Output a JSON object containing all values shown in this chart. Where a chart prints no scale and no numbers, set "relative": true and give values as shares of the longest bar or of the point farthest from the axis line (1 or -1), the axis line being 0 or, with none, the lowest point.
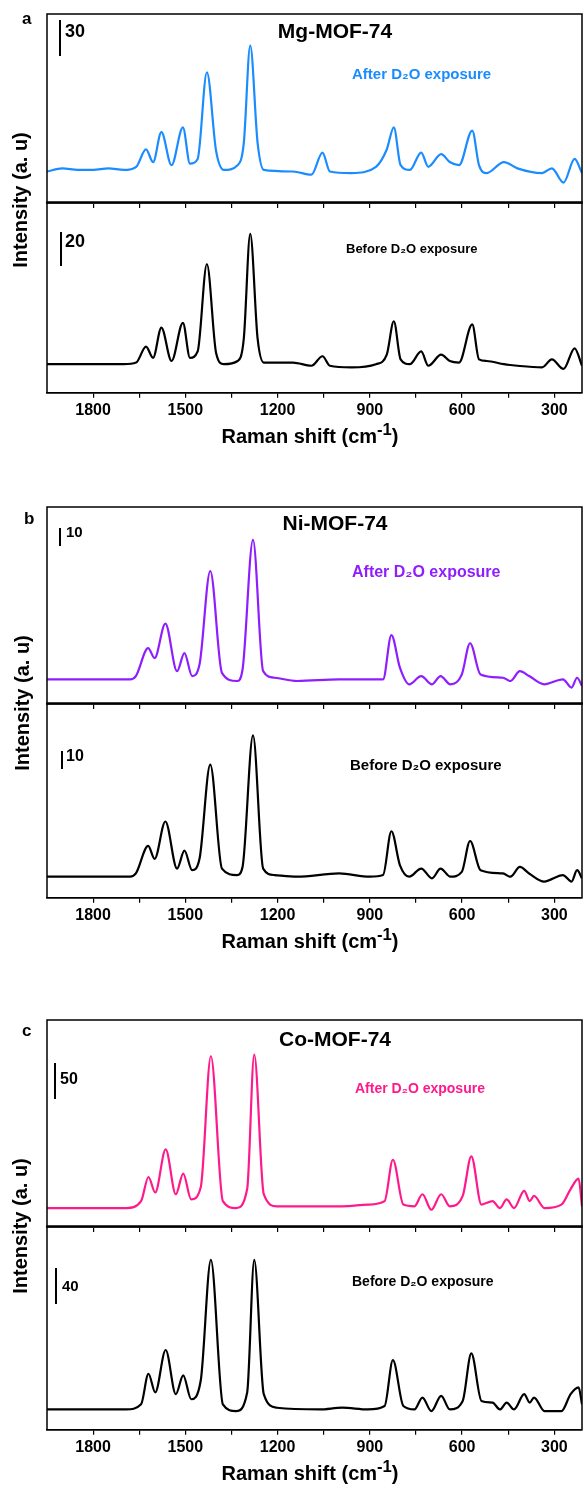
{
  "chart_data": [
    {
      "type": "line",
      "title": "Mg-MOF-74",
      "ylabel": "Intensity (a. u)",
      "relative": true,
      "tick_labels": false,
      "legend": false,
      "grid": false,
      "xlim": [
        1950,
        210
      ],
      "xticks": [
        1800,
        {
          "value": 1650,
          "label": null
        },
        1500,
        {
          "value": 1350,
          "label": null
        },
        1200,
        {
          "value": 1050,
          "label": null
        },
        900,
        {
          "value": 750,
          "label": null
        },
        600,
        {
          "value": 450,
          "label": null
        },
        300
      ],
      "annotations": [
        "a",
        "30"
      ],
      "series": [
        {
          "name": "After D₂O exposure",
          "color": "#1a8cff",
          "x": [
            1950,
            1900,
            1850,
            1800,
            1750,
            1700,
            1660,
            1628,
            1605,
            1578,
            1545,
            1508,
            1485,
            1460,
            1430,
            1400,
            1375,
            1330,
            1310,
            1289,
            1265,
            1245,
            1150,
            1090,
            1054,
            1030,
            960,
            880,
            845,
            822,
            800,
            770,
            733,
            710,
            668,
            640,
            610,
            567,
            545,
            520,
            464,
            420,
            340,
            308,
            270,
            234,
            210
          ],
          "values": [
            0.2,
            0.22,
            0.21,
            0.21,
            0.22,
            0.21,
            0.23,
            0.34,
            0.26,
            0.45,
            0.24,
            0.48,
            0.25,
            0.28,
            0.83,
            0.33,
            0.21,
            0.24,
            0.38,
            1,
            0.38,
            0.21,
            0.2,
            0.18,
            0.32,
            0.2,
            0.19,
            0.23,
            0.34,
            0.48,
            0.24,
            0.21,
            0.32,
            0.23,
            0.31,
            0.26,
            0.24,
            0.46,
            0.24,
            0.19,
            0.26,
            0.22,
            0.19,
            0.22,
            0.13,
            0.28,
            0.19
          ]
        }
      ]
    },
    {
      "type": "line",
      "xlabel": "Raman shift (cm$^{-1}$)",
      "relative": true,
      "tick_labels": "x",
      "legend": false,
      "grid": false,
      "xlim": [
        1950,
        210
      ],
      "xticks": [
        1800,
        {
          "value": 1650,
          "label": null
        },
        1500,
        {
          "value": 1350,
          "label": null
        },
        1200,
        {
          "value": 1050,
          "label": null
        },
        900,
        {
          "value": 750,
          "label": null
        },
        600,
        {
          "value": 450,
          "label": null
        },
        300
      ],
      "annotations": [
        "20"
      ],
      "series": [
        {
          "name": "Before D₂O exposure",
          "color": "#000000",
          "x": [
            1950,
            1900,
            1850,
            1800,
            1750,
            1700,
            1660,
            1628,
            1605,
            1578,
            1545,
            1508,
            1485,
            1460,
            1430,
            1400,
            1375,
            1330,
            1310,
            1289,
            1265,
            1245,
            1150,
            1090,
            1054,
            1030,
            960,
            880,
            845,
            822,
            800,
            770,
            733,
            710,
            668,
            640,
            610,
            567,
            545,
            520,
            464,
            420,
            340,
            308,
            270,
            234,
            210
          ],
          "values": [
            0.18,
            0.18,
            0.18,
            0.18,
            0.18,
            0.18,
            0.19,
            0.29,
            0.22,
            0.41,
            0.2,
            0.44,
            0.22,
            0.26,
            0.81,
            0.25,
            0.18,
            0.2,
            0.34,
            1,
            0.34,
            0.19,
            0.19,
            0.17,
            0.23,
            0.17,
            0.16,
            0.18,
            0.24,
            0.45,
            0.21,
            0.18,
            0.26,
            0.17,
            0.24,
            0.2,
            0.19,
            0.43,
            0.21,
            0.2,
            0.18,
            0.17,
            0.16,
            0.21,
            0.15,
            0.28,
            0.17
          ]
        }
      ]
    },
    {
      "type": "line",
      "title": "Ni-MOF-74",
      "ylabel": "Intensity (a. u)",
      "relative": true,
      "tick_labels": false,
      "legend": false,
      "grid": false,
      "xlim": [
        1950,
        210
      ],
      "xticks": [
        1800,
        {
          "value": 1650,
          "label": null
        },
        1500,
        {
          "value": 1350,
          "label": null
        },
        1200,
        {
          "value": 1050,
          "label": null
        },
        900,
        {
          "value": 750,
          "label": null
        },
        600,
        {
          "value": 450,
          "label": null
        },
        300
      ],
      "annotations": [
        "b",
        "10"
      ],
      "series": [
        {
          "name": "After D₂O exposure",
          "color": "#8f1eff",
          "x": [
            1950,
            1850,
            1750,
            1680,
            1661,
            1621,
            1600,
            1565,
            1527,
            1503,
            1478,
            1454,
            1419,
            1381,
            1332,
            1314,
            1280,
            1247,
            1210,
            1137,
            1000,
            900,
            857,
            830,
            802,
            772,
            733,
            698,
            670,
            638,
            601,
            574,
            540,
            467,
            443,
            412,
            382,
            333,
            272,
            244,
            226,
            210
          ],
          "values": [
            0.15,
            0.15,
            0.15,
            0.15,
            0.17,
            0.34,
            0.28,
            0.49,
            0.2,
            0.31,
            0.17,
            0.24,
            0.81,
            0.19,
            0.14,
            0.21,
            1,
            0.2,
            0.16,
            0.14,
            0.15,
            0.15,
            0.15,
            0.42,
            0.22,
            0.12,
            0.17,
            0.12,
            0.17,
            0.12,
            0.18,
            0.37,
            0.18,
            0.16,
            0.14,
            0.2,
            0.17,
            0.12,
            0.15,
            0.1,
            0.16,
            0.11
          ]
        }
      ]
    },
    {
      "type": "line",
      "xlabel": "Raman shift (cm$^{-1}$)",
      "relative": true,
      "tick_labels": "x",
      "legend": false,
      "grid": false,
      "xlim": [
        1950,
        210
      ],
      "xticks": [
        1800,
        {
          "value": 1650,
          "label": null
        },
        1500,
        {
          "value": 1350,
          "label": null
        },
        1200,
        {
          "value": 1050,
          "label": null
        },
        900,
        {
          "value": 750,
          "label": null
        },
        600,
        {
          "value": 450,
          "label": null
        },
        300
      ],
      "annotations": [
        "10"
      ],
      "series": [
        {
          "name": "Before D₂O exposure",
          "color": "#000000",
          "x": [
            1950,
            1850,
            1750,
            1680,
            1661,
            1621,
            1600,
            1565,
            1527,
            1503,
            1478,
            1454,
            1419,
            1381,
            1332,
            1314,
            1280,
            1247,
            1210,
            1137,
            1000,
            900,
            857,
            830,
            802,
            772,
            733,
            698,
            670,
            638,
            601,
            574,
            540,
            467,
            443,
            412,
            382,
            333,
            272,
            244,
            226,
            210
          ],
          "values": [
            0.13,
            0.13,
            0.13,
            0.13,
            0.15,
            0.32,
            0.24,
            0.47,
            0.18,
            0.29,
            0.17,
            0.24,
            0.82,
            0.18,
            0.14,
            0.19,
            1,
            0.18,
            0.14,
            0.13,
            0.15,
            0.13,
            0.14,
            0.41,
            0.2,
            0.13,
            0.18,
            0.12,
            0.18,
            0.13,
            0.16,
            0.35,
            0.17,
            0.15,
            0.13,
            0.19,
            0.15,
            0.1,
            0.14,
            0.1,
            0.17,
            0.12
          ]
        }
      ]
    },
    {
      "type": "line",
      "title": "Co-MOF-74",
      "ylabel": "Intensity (a. u)",
      "relative": true,
      "tick_labels": false,
      "legend": false,
      "grid": false,
      "xlim": [
        1950,
        210
      ],
      "xticks": [
        1800,
        {
          "value": 1650,
          "label": null
        },
        1500,
        {
          "value": 1350,
          "label": null
        },
        1200,
        {
          "value": 1050,
          "label": null
        },
        900,
        {
          "value": 750,
          "label": null
        },
        600,
        {
          "value": 450,
          "label": null
        },
        300
      ],
      "annotations": [
        "c",
        "50"
      ],
      "series": [
        {
          "name": "After D₂O exposure",
          "color": "#ff1a8c",
          "x": [
            1950,
            1850,
            1750,
            1692,
            1644,
            1620,
            1598,
            1564,
            1531,
            1507,
            1481,
            1450,
            1417,
            1378,
            1335,
            1299,
            1276,
            1245,
            1202,
            1063,
            990,
            906,
            852,
            825,
            791,
            755,
            729,
            700,
            668,
            640,
            598,
            570,
            537,
            501,
            477,
            455,
            431,
            398,
            380,
            366,
            332,
            277,
            247,
            221,
            210
          ],
          "values": [
            0.11,
            0.11,
            0.11,
            0.11,
            0.15,
            0.29,
            0.2,
            0.45,
            0.19,
            0.31,
            0.16,
            0.23,
            0.99,
            0.15,
            0.11,
            0.22,
            1,
            0.19,
            0.12,
            0.12,
            0.12,
            0.13,
            0.15,
            0.39,
            0.13,
            0.12,
            0.19,
            0.1,
            0.19,
            0.12,
            0.18,
            0.41,
            0.13,
            0.15,
            0.11,
            0.16,
            0.11,
            0.21,
            0.15,
            0.18,
            0.11,
            0.13,
            0.22,
            0.28,
            0.12
          ]
        }
      ]
    },
    {
      "type": "line",
      "xlabel": "Raman shift (cm$^{-1}$)",
      "relative": true,
      "tick_labels": "x",
      "legend": false,
      "grid": false,
      "xlim": [
        1950,
        210
      ],
      "xticks": [
        1800,
        {
          "value": 1650,
          "label": null
        },
        1500,
        {
          "value": 1350,
          "label": null
        },
        1200,
        {
          "value": 1050,
          "label": null
        },
        900,
        {
          "value": 750,
          "label": null
        },
        600,
        {
          "value": 450,
          "label": null
        },
        300
      ],
      "annotations": [
        "40"
      ],
      "series": [
        {
          "name": "Before D₂O exposure",
          "color": "#000000",
          "x": [
            1950,
            1850,
            1750,
            1692,
            1644,
            1620,
            1598,
            1564,
            1531,
            1507,
            1481,
            1450,
            1417,
            1378,
            1335,
            1299,
            1276,
            1245,
            1202,
            1063,
            990,
            906,
            852,
            825,
            791,
            755,
            729,
            700,
            668,
            640,
            598,
            570,
            537,
            501,
            477,
            455,
            431,
            398,
            380,
            366,
            332,
            277,
            247,
            221,
            210
          ],
          "values": [
            0.12,
            0.12,
            0.12,
            0.12,
            0.15,
            0.33,
            0.22,
            0.47,
            0.21,
            0.32,
            0.18,
            0.29,
            1,
            0.15,
            0.11,
            0.22,
            1,
            0.21,
            0.13,
            0.12,
            0.13,
            0.12,
            0.14,
            0.41,
            0.14,
            0.12,
            0.19,
            0.11,
            0.2,
            0.12,
            0.17,
            0.45,
            0.17,
            0.16,
            0.12,
            0.16,
            0.12,
            0.21,
            0.16,
            0.19,
            0.11,
            0.11,
            0.21,
            0.25,
            0.15
          ]
        }
      ]
    }
  ]
}
